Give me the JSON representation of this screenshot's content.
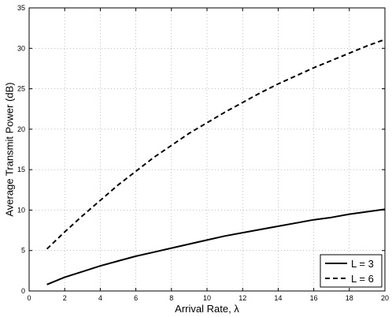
{
  "chart_data": {
    "type": "line",
    "xlabel": "Arrival Rate, λ",
    "ylabel": "Average Transmit Power (dB)",
    "xlim": [
      0,
      20
    ],
    "ylim": [
      0,
      35
    ],
    "x_ticks": [
      0,
      2,
      4,
      6,
      8,
      10,
      12,
      14,
      16,
      18,
      20
    ],
    "y_ticks": [
      0,
      5,
      10,
      15,
      20,
      25,
      30,
      35
    ],
    "grid": true,
    "legend_position": "bottom-right",
    "series": [
      {
        "name": "L = 3",
        "line_style": "solid",
        "color": "#000000",
        "x": [
          1,
          2,
          3,
          4,
          5,
          6,
          7,
          8,
          9,
          10,
          11,
          12,
          13,
          14,
          15,
          16,
          17,
          18,
          19,
          20
        ],
        "y": [
          0.8,
          1.7,
          2.4,
          3.1,
          3.7,
          4.3,
          4.8,
          5.3,
          5.8,
          6.3,
          6.8,
          7.2,
          7.6,
          8.0,
          8.4,
          8.8,
          9.1,
          9.5,
          9.8,
          10.1
        ]
      },
      {
        "name": "L = 6",
        "line_style": "dashed",
        "color": "#000000",
        "x": [
          1,
          2,
          3,
          4,
          5,
          6,
          7,
          8,
          9,
          10,
          11,
          12,
          13,
          14,
          15,
          16,
          17,
          18,
          19,
          20
        ],
        "y": [
          5.2,
          7.3,
          9.3,
          11.2,
          13.1,
          14.8,
          16.5,
          18.0,
          19.5,
          20.8,
          22.1,
          23.3,
          24.5,
          25.6,
          26.6,
          27.6,
          28.5,
          29.4,
          30.3,
          31.1
        ]
      }
    ]
  }
}
